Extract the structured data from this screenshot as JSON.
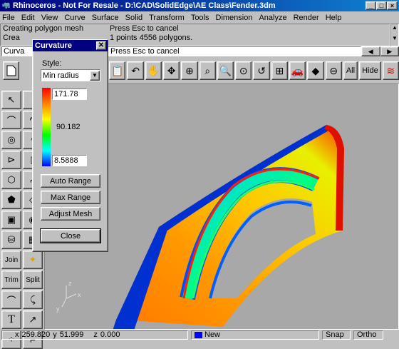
{
  "window": {
    "title": "Rhinoceros - Not For Resale - D:\\CAD\\SolidEdge\\AE Class\\Fender.3dm",
    "min": "_",
    "max": "□",
    "close": "×"
  },
  "menu": [
    "File",
    "Edit",
    "View",
    "Curve",
    "Surface",
    "Solid",
    "Transform",
    "Tools",
    "Dimension",
    "Analyze",
    "Render",
    "Help"
  ],
  "command_history": {
    "line1_left": "Creating polygon mesh",
    "line1_right": "Press Esc to cancel",
    "line2_left": "Crea",
    "line2_right": "1 points 4556 polygons."
  },
  "command_prompt": {
    "left": "Curva",
    "right": "Press Esc to cancel"
  },
  "toolbar": {
    "all_label": "All",
    "hide_label": "Hide"
  },
  "left_tools": {
    "join": "Join",
    "trim": "Trim",
    "split": "Split"
  },
  "status": {
    "x_label": "x",
    "x": "259.820",
    "y_label": "y",
    "y": "51.999",
    "z_label": "z",
    "z": "0.000",
    "layer": "New",
    "layer_color": "#0000ff",
    "snap": "Snap",
    "ortho": "Ortho"
  },
  "curvature_dialog": {
    "title": "Curvature",
    "style_label": "Style:",
    "style_value": "Min radius",
    "max_value": "171.78",
    "mid_value": "90.182",
    "min_value": "8.5888",
    "buttons": {
      "auto_range": "Auto Range",
      "max_range": "Max Range",
      "adjust_mesh": "Adjust Mesh",
      "close": "Close"
    }
  },
  "axes": {
    "x": "x",
    "y": "y",
    "z": "z"
  }
}
